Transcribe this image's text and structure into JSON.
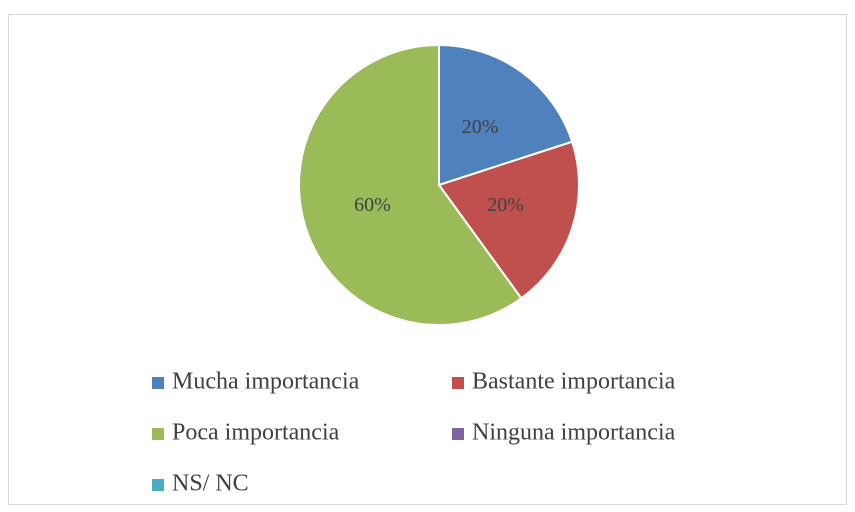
{
  "chart_data": {
    "type": "pie",
    "categories": [
      "Mucha importancia",
      "Bastante importancia",
      "Poca importancia",
      "Ninguna importancia",
      "NS/ NC"
    ],
    "values": [
      20,
      20,
      60,
      0,
      0
    ],
    "value_labels": [
      "20%",
      "20%",
      "60%",
      null,
      null
    ],
    "colors": [
      "#4f81bd",
      "#c0504d",
      "#9bbb59",
      "#8064a2",
      "#4bacc6"
    ],
    "legend": "bottom"
  }
}
